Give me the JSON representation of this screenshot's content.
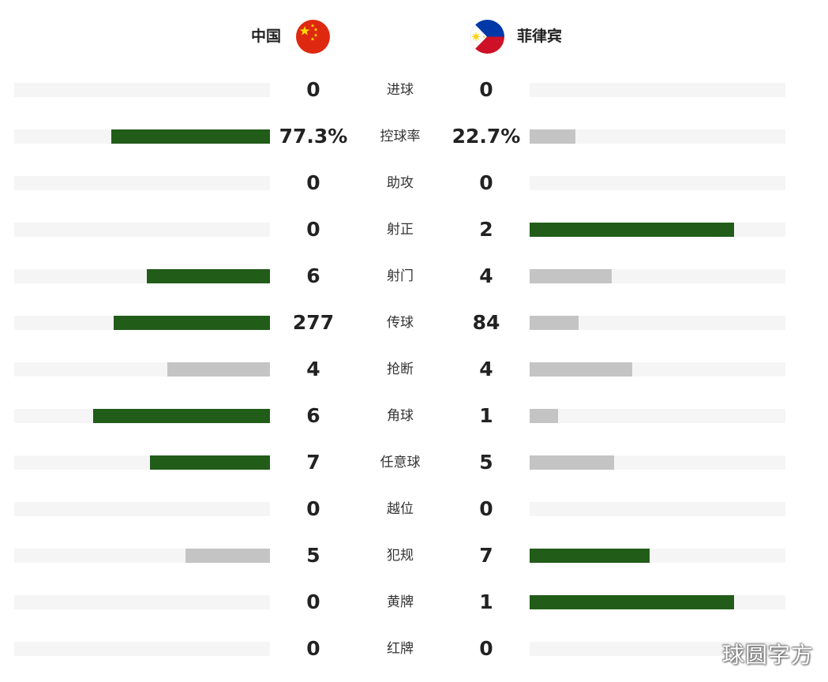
{
  "teams": {
    "home": {
      "name": "中国",
      "flag_icon": "china-flag-icon"
    },
    "away": {
      "name": "菲律宾",
      "flag_icon": "philippines-flag-icon"
    }
  },
  "colors": {
    "lead_bar": "#215c19",
    "trail_bar": "#c4c4c4",
    "track": "#f5f5f5"
  },
  "stats": [
    {
      "label": "进球",
      "home": "0",
      "away": "0",
      "home_pct": 0,
      "away_pct": 0,
      "leader": "none"
    },
    {
      "label": "控球率",
      "home": "77.3%",
      "away": "22.7%",
      "home_pct": 0.62,
      "away_pct": 0.18,
      "leader": "home"
    },
    {
      "label": "助攻",
      "home": "0",
      "away": "0",
      "home_pct": 0,
      "away_pct": 0,
      "leader": "none"
    },
    {
      "label": "射正",
      "home": "0",
      "away": "2",
      "home_pct": 0,
      "away_pct": 0.8,
      "leader": "away"
    },
    {
      "label": "射门",
      "home": "6",
      "away": "4",
      "home_pct": 0.48,
      "away_pct": 0.32,
      "leader": "home"
    },
    {
      "label": "传球",
      "home": "277",
      "away": "84",
      "home_pct": 0.61,
      "away_pct": 0.19,
      "leader": "home"
    },
    {
      "label": "抢断",
      "home": "4",
      "away": "4",
      "home_pct": 0.4,
      "away_pct": 0.4,
      "leader": "none"
    },
    {
      "label": "角球",
      "home": "6",
      "away": "1",
      "home_pct": 0.69,
      "away_pct": 0.11,
      "leader": "home"
    },
    {
      "label": "任意球",
      "home": "7",
      "away": "5",
      "home_pct": 0.47,
      "away_pct": 0.33,
      "leader": "home"
    },
    {
      "label": "越位",
      "home": "0",
      "away": "0",
      "home_pct": 0,
      "away_pct": 0,
      "leader": "none"
    },
    {
      "label": "犯规",
      "home": "5",
      "away": "7",
      "home_pct": 0.33,
      "away_pct": 0.47,
      "leader": "away"
    },
    {
      "label": "黄牌",
      "home": "0",
      "away": "1",
      "home_pct": 0,
      "away_pct": 0.8,
      "leader": "away"
    },
    {
      "label": "红牌",
      "home": "0",
      "away": "0",
      "home_pct": 0,
      "away_pct": 0,
      "leader": "none"
    }
  ],
  "watermark": "球圆字方"
}
